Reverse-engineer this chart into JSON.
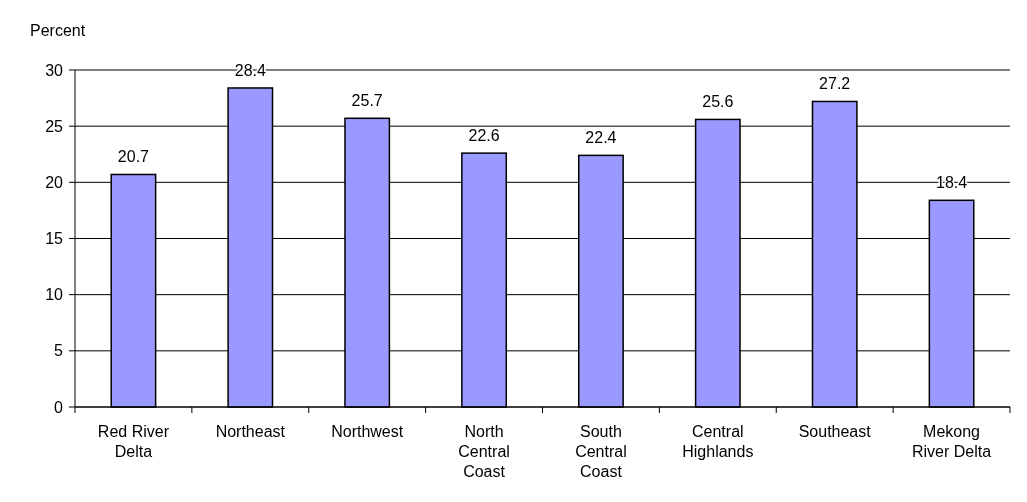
{
  "chart_data": {
    "type": "bar",
    "ylabel": "Percent",
    "categories": [
      "Red River Delta",
      "Northeast",
      "Northwest",
      "North Central Coast",
      "South Central Coast",
      "Central Highlands",
      "Southeast",
      "Mekong River Delta"
    ],
    "values": [
      20.7,
      28.4,
      25.7,
      22.6,
      22.4,
      25.6,
      27.2,
      18.4
    ],
    "color": "#9999ff",
    "ylim": [
      0,
      30
    ],
    "yticks": [
      0,
      5,
      10,
      15,
      20,
      25,
      30
    ],
    "grid": "y",
    "data_labels": true
  }
}
